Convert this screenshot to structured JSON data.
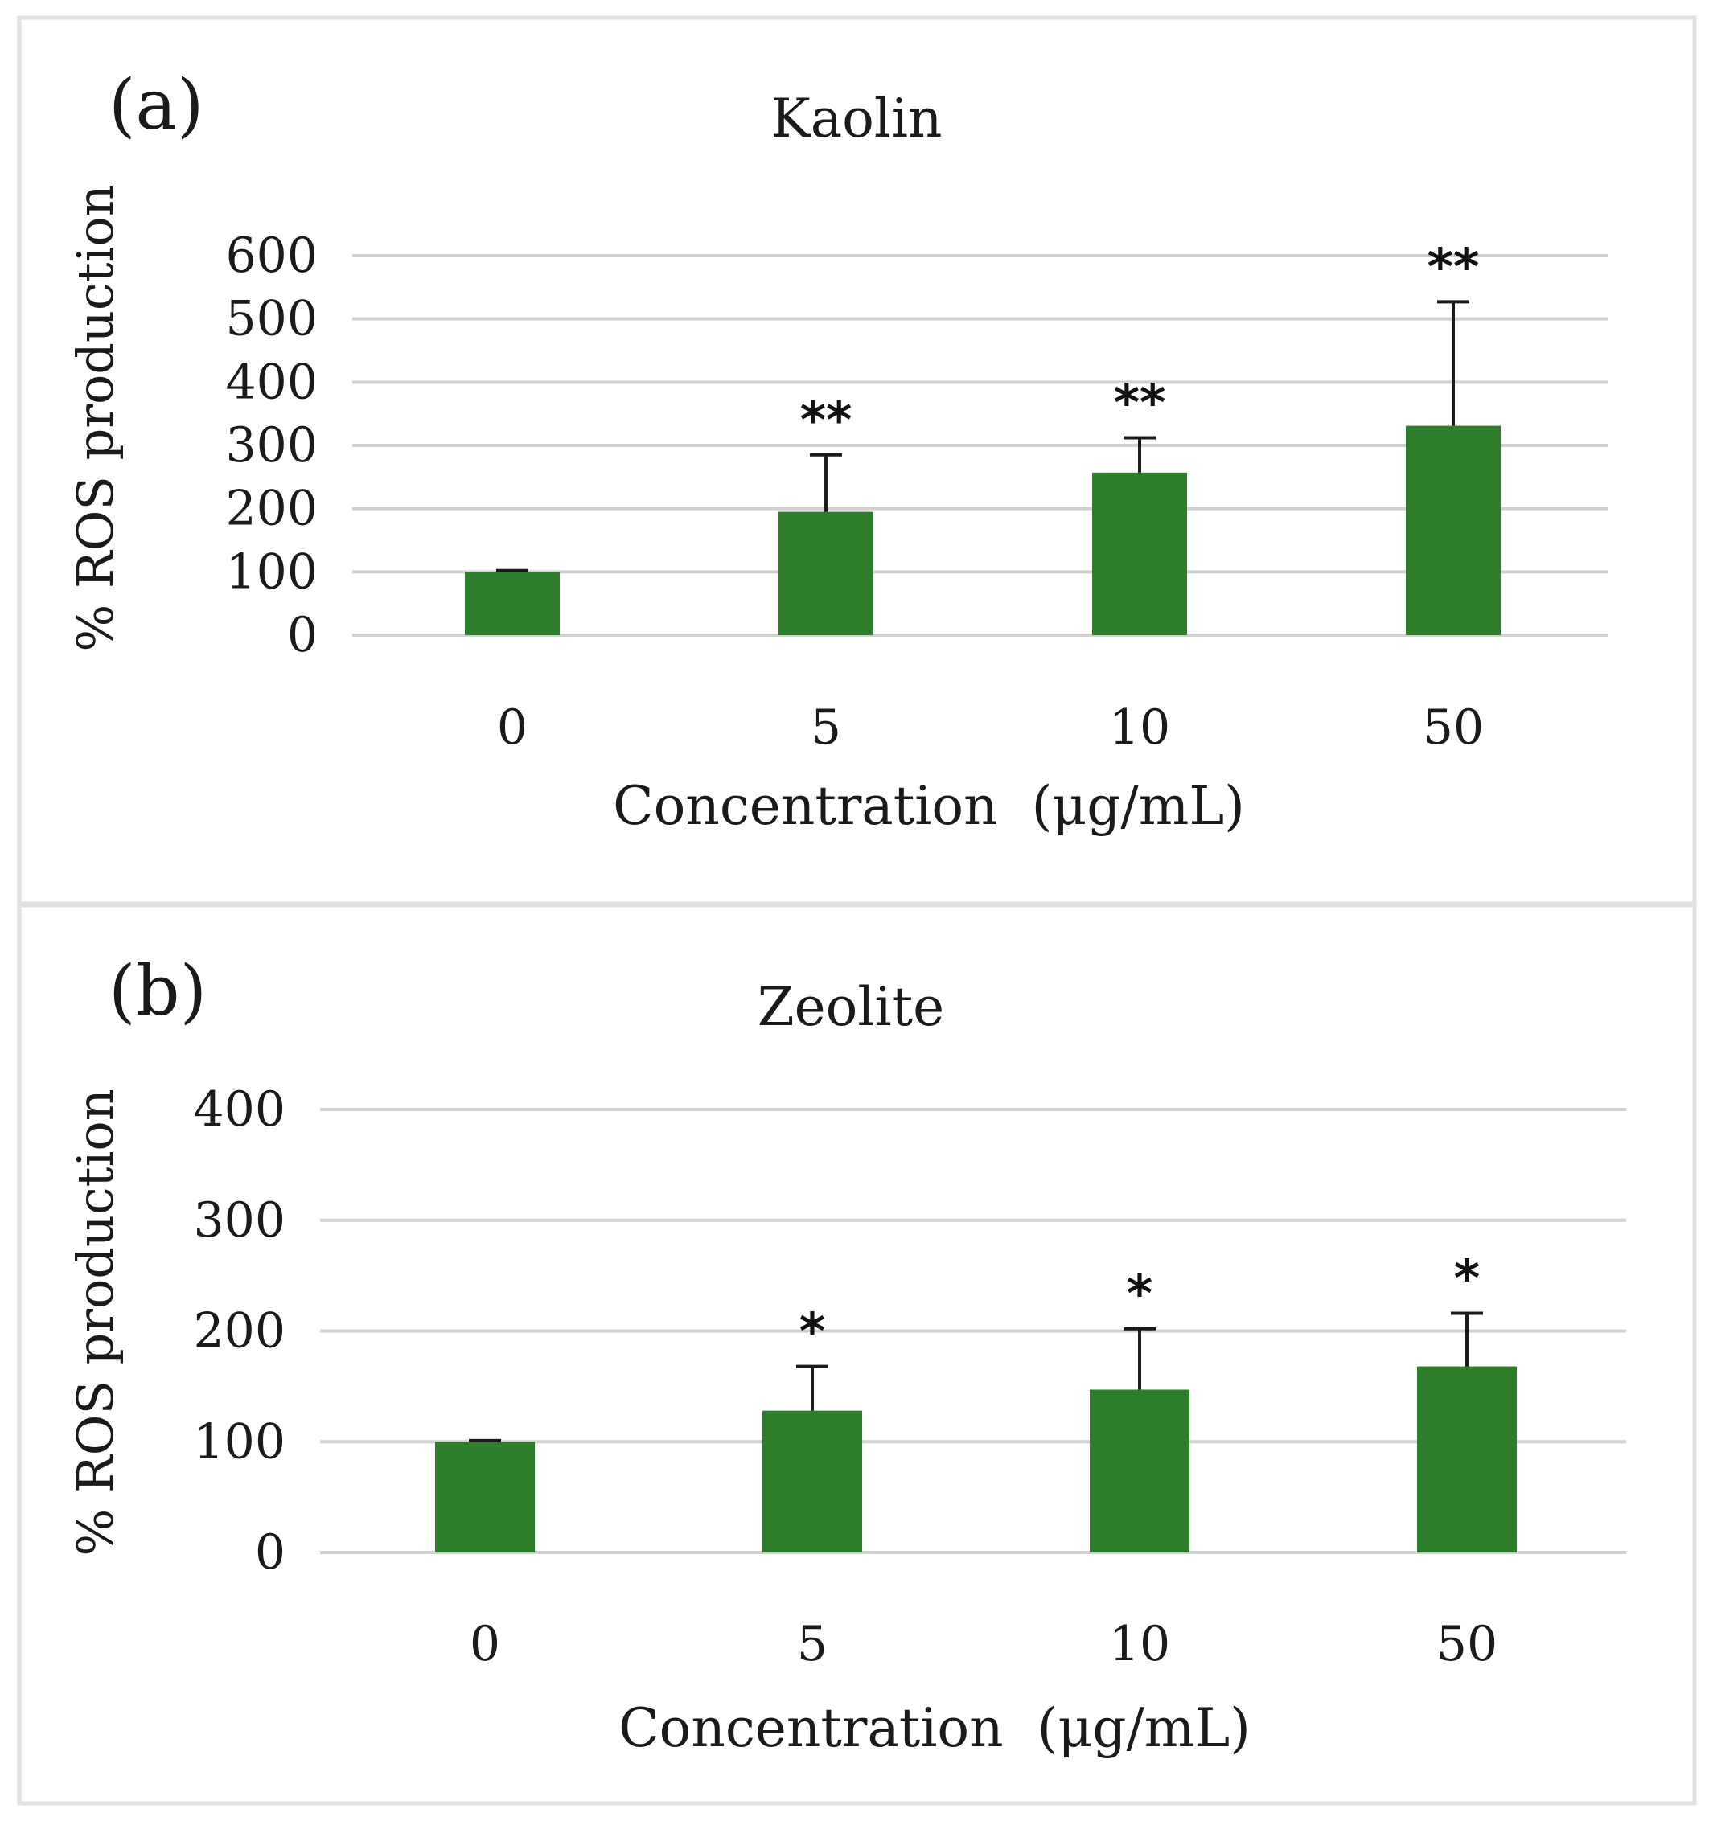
{
  "colors": {
    "bar": "#2e7d2a",
    "grid": "#d0d0d0",
    "text": "#1a1a1a"
  },
  "chart_data": [
    {
      "type": "bar",
      "panel_label": "(a)",
      "title": "Kaolin",
      "xlabel": "Concentration  (μg/mL)",
      "ylabel": "% ROS production",
      "categories": [
        "0",
        "5",
        "10",
        "50"
      ],
      "values": [
        100,
        195,
        257,
        331
      ],
      "error_upper": [
        2,
        90,
        55,
        196
      ],
      "significance": [
        "",
        "**",
        "**",
        "**"
      ],
      "yticks": [
        0,
        100,
        200,
        300,
        400,
        500,
        600
      ],
      "ylim": [
        0,
        600
      ],
      "grid": true
    },
    {
      "type": "bar",
      "panel_label": "(b)",
      "title": "Zeolite",
      "xlabel": "Concentration  (μg/mL)",
      "ylabel": "% ROS production",
      "categories": [
        "0",
        "5",
        "10",
        "50"
      ],
      "values": [
        100,
        128,
        147,
        168
      ],
      "error_upper": [
        1,
        40,
        55,
        48
      ],
      "significance": [
        "",
        "*",
        "*",
        "*"
      ],
      "yticks": [
        0,
        100,
        200,
        300,
        400
      ],
      "ylim": [
        0,
        400
      ],
      "grid": true
    }
  ]
}
